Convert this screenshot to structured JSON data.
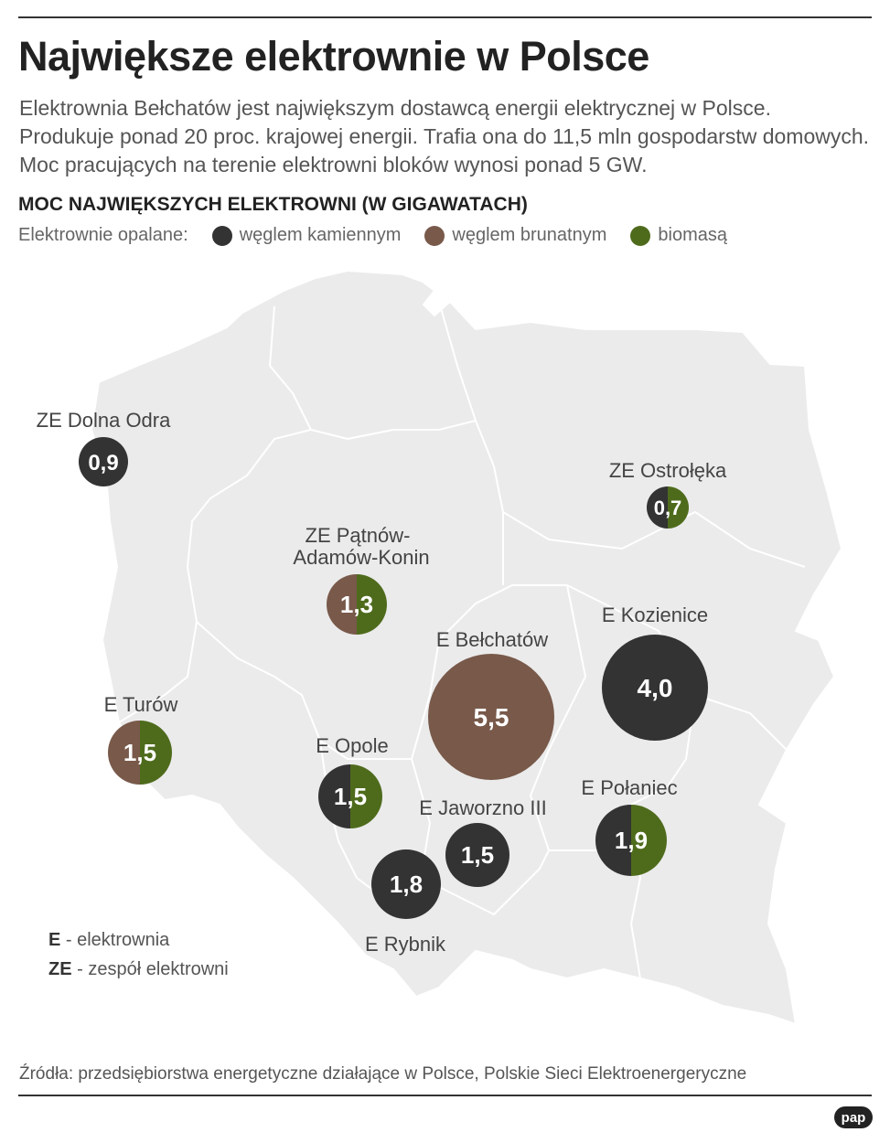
{
  "header": {
    "title": "Największe elektrownie w Polsce",
    "intro": "Elektrownia Bełchatów jest największym dostawcą energii elektrycznej w Polsce. Produkuje ponad 20 proc. krajowej energii. Trafia ona do 11,5 mln gospodarstw domowych. Moc pracujących na terenie elektrowni bloków wynosi ponad 5 GW.",
    "subtitle": "MOC NAJWIĘKSZYCH ELEKTROWNI (W GIGAWATACH)"
  },
  "legend": {
    "label": "Elektrownie opalane:",
    "items": [
      {
        "label": "węglem kamiennym",
        "color": "#333333"
      },
      {
        "label": "węglem brunatnym",
        "color": "#78594a"
      },
      {
        "label": "biomasą",
        "color": "#4e6b1c"
      }
    ]
  },
  "colors": {
    "map_fill": "#ebebeb",
    "border": "#ffffff",
    "text_on_circle": "#ffffff"
  },
  "plants": [
    {
      "name": "ZE Dolna Odra",
      "value": "0,9",
      "fuel": [
        "hard_coal"
      ]
    },
    {
      "name": "ZE Ostrołęka",
      "value": "0,7",
      "fuel": [
        "hard_coal",
        "biomass"
      ]
    },
    {
      "name": "ZE Pątnów-Adamów-Konin",
      "value": "1,3",
      "fuel": [
        "lignite",
        "biomass"
      ]
    },
    {
      "name": "E Kozienice",
      "value": "4,0",
      "fuel": [
        "hard_coal"
      ]
    },
    {
      "name": "E Bełchatów",
      "value": "5,5",
      "fuel": [
        "lignite"
      ]
    },
    {
      "name": "E Turów",
      "value": "1,5",
      "fuel": [
        "lignite",
        "biomass"
      ]
    },
    {
      "name": "E Opole",
      "value": "1,5",
      "fuel": [
        "hard_coal",
        "biomass"
      ]
    },
    {
      "name": "E Połaniec",
      "value": "1,9",
      "fuel": [
        "hard_coal",
        "biomass"
      ]
    },
    {
      "name": "E Jaworzno III",
      "value": "1,5",
      "fuel": [
        "hard_coal"
      ]
    },
    {
      "name": "E Rybnik",
      "value": "1,8",
      "fuel": [
        "hard_coal"
      ]
    }
  ],
  "abbreviations": [
    {
      "code": "E",
      "text": " - elektrownia"
    },
    {
      "code": "ZE",
      "text": " - zespół elektrowni"
    }
  ],
  "footer": {
    "source": "Źródła: przedsiębiorstwa energetyczne działające w Polsce, Polskie Sieci Elektroenergeryczne",
    "logo": "pap"
  }
}
